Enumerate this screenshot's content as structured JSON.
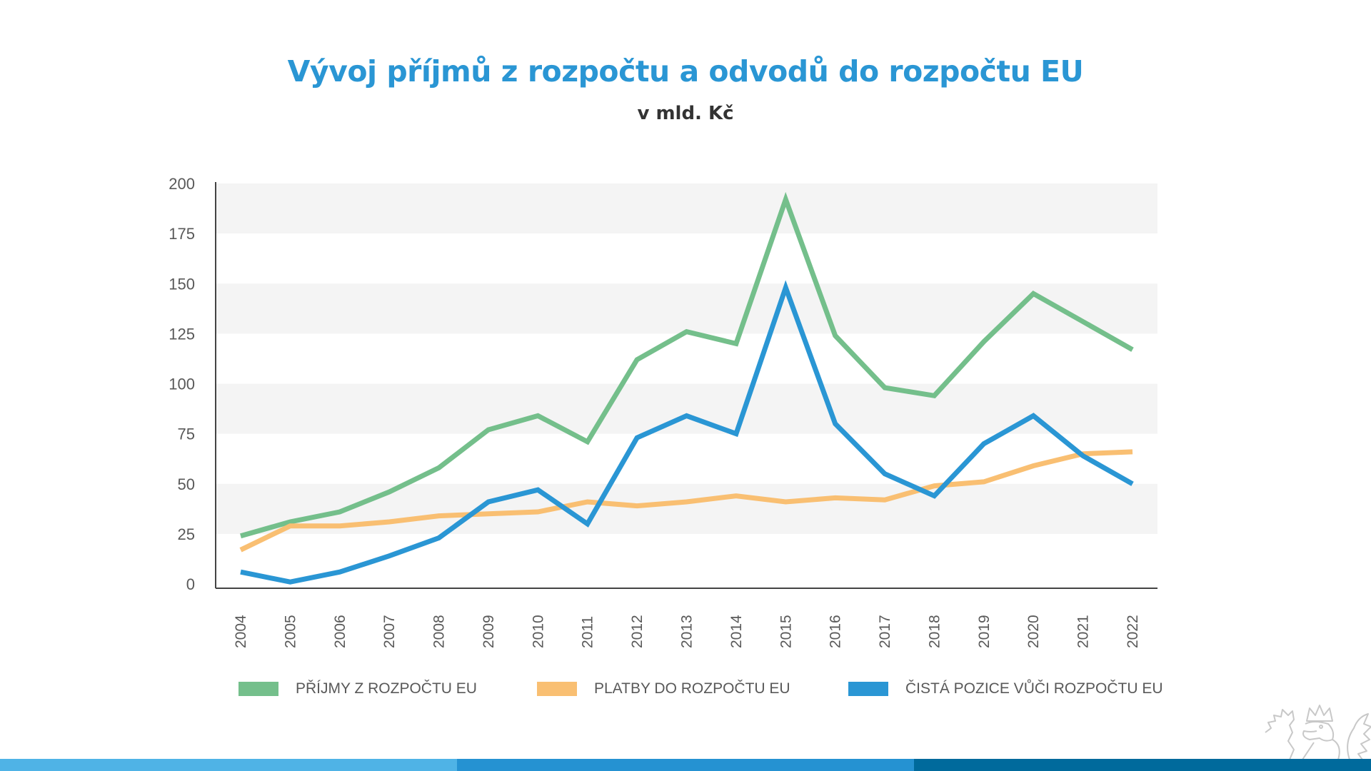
{
  "title": "Vývoj příjmů z rozpočtu a odvodů do rozpočtu EU",
  "subtitle": "v mld. Kč",
  "chart_data": {
    "type": "line",
    "title": "Vývoj příjmů z rozpočtu a odvodů do rozpočtu EU",
    "subtitle": "v mld. Kč",
    "xlabel": "",
    "ylabel": "",
    "ylim": [
      0,
      200
    ],
    "yticks": [
      0,
      25,
      50,
      75,
      100,
      125,
      150,
      175,
      200
    ],
    "grid": "alternating horizontal bands",
    "legend_position": "bottom",
    "x": [
      "2004",
      "2005",
      "2006",
      "2007",
      "2008",
      "2009",
      "2010",
      "2011",
      "2012",
      "2013",
      "2014",
      "2015",
      "2016",
      "2017",
      "2018",
      "2019",
      "2020",
      "2021",
      "2022"
    ],
    "series": [
      {
        "name": "PŘÍJMY Z ROZPOČTU EU",
        "color": "#74BF8B",
        "values": [
          24,
          31,
          36,
          46,
          58,
          77,
          84,
          71,
          112,
          126,
          120,
          192,
          124,
          98,
          94,
          121,
          145,
          131,
          117
        ]
      },
      {
        "name": "PLATBY DO ROZPOČTU EU",
        "color": "#F9BF72",
        "values": [
          17,
          29,
          29,
          31,
          34,
          35,
          36,
          41,
          39,
          41,
          44,
          41,
          43,
          42,
          49,
          51,
          59,
          65,
          66
        ]
      },
      {
        "name": "ČISTÁ POZICE VŮČI ROZPOČTU EU",
        "color": "#2A96D4",
        "values": [
          6,
          1,
          6,
          14,
          23,
          41,
          47,
          30,
          73,
          84,
          75,
          148,
          80,
          55,
          44,
          70,
          84,
          64,
          50
        ]
      }
    ]
  },
  "colors": {
    "title": "#2A96D4",
    "band": "#F4F4F4",
    "axis": "#444444",
    "bottom_bar": [
      "#4FB3E6",
      "#2592D2",
      "#006A9C"
    ]
  },
  "logo": {
    "icon": "czech-lion-emblem-icon"
  }
}
